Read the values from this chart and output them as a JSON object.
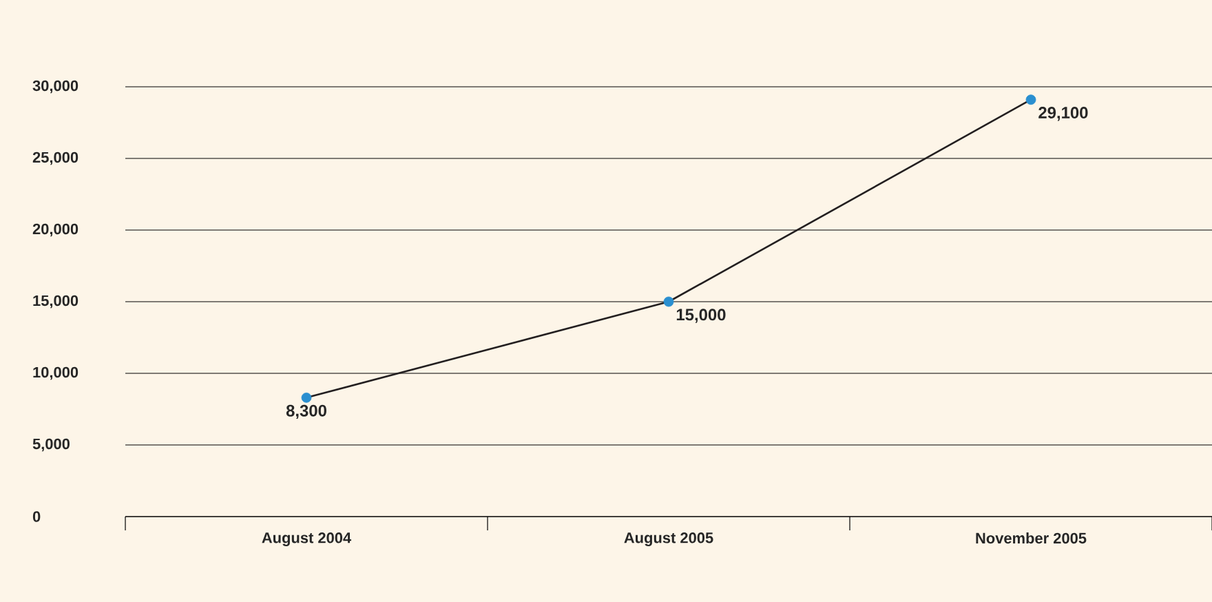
{
  "chart_data": {
    "type": "line",
    "categories": [
      "August 2004",
      "August 2005",
      "November 2005"
    ],
    "values": [
      8300,
      15000,
      29100
    ],
    "value_labels": [
      "8,300",
      "15,000",
      "29,100"
    ],
    "color": "#231f20",
    "colors": [
      "#2a8fd0",
      "#2a8fd0",
      "#2a8fd0"
    ],
    "marker": "circle",
    "line_style": "solid",
    "ylim": [
      0,
      30000
    ],
    "yticks": [
      {
        "value": 0,
        "label": "0"
      },
      {
        "value": 5000,
        "label": "5,000"
      },
      {
        "value": 10000,
        "label": "10,000"
      },
      {
        "value": 15000,
        "label": "15,000"
      },
      {
        "value": 20000,
        "label": "20,000"
      },
      {
        "value": 25000,
        "label": "25,000"
      },
      {
        "value": 30000,
        "label": "30,000"
      }
    ],
    "grid": "y"
  }
}
